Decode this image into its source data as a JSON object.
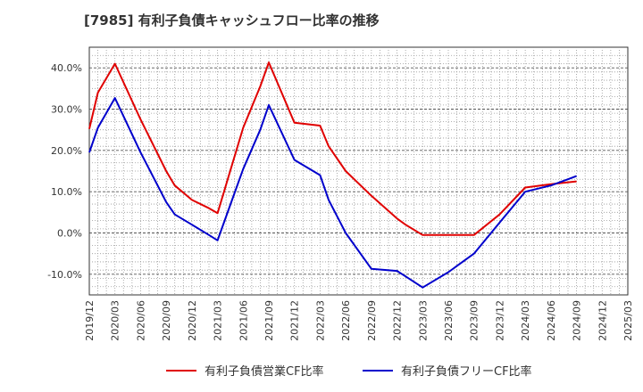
{
  "chart_data": {
    "type": "line",
    "title": "[7985]  有利子負債キャッシュフロー比率の推移",
    "xlabel": "",
    "ylabel": "",
    "ylim": [
      -15,
      45
    ],
    "xlim": [
      "2019/12",
      "2025/03"
    ],
    "x_ticks": [
      "2019/12",
      "2020/03",
      "2020/06",
      "2020/09",
      "2020/12",
      "2021/03",
      "2021/06",
      "2021/09",
      "2021/12",
      "2022/03",
      "2022/06",
      "2022/09",
      "2022/12",
      "2023/03",
      "2023/06",
      "2023/09",
      "2023/12",
      "2024/03",
      "2024/06",
      "2024/09",
      "2024/12",
      "2025/03"
    ],
    "y_ticks": [
      -10,
      0,
      10,
      20,
      30,
      40
    ],
    "y_tick_labels": [
      "-10.0%",
      "0.0%",
      "10.0%",
      "20.0%",
      "30.0%",
      "40.0%"
    ],
    "grid": true,
    "legend_position": "bottom",
    "x": [
      "2019/12",
      "2020/01",
      "2020/03",
      "2020/06",
      "2020/09",
      "2020/10",
      "2020/12",
      "2021/02",
      "2021/03",
      "2021/06",
      "2021/08",
      "2021/09",
      "2021/12",
      "2022/03",
      "2022/04",
      "2022/06",
      "2022/09",
      "2022/12",
      "2023/01",
      "2023/03",
      "2023/06",
      "2023/09",
      "2023/12",
      "2024/03",
      "2024/06",
      "2024/09"
    ],
    "series": [
      {
        "name": "有利子負債営業CF比率",
        "color": "#e00000",
        "values": [
          25.2,
          34.0,
          41.0,
          27.5,
          15.0,
          11.5,
          8.0,
          6.0,
          4.8,
          25.5,
          35.5,
          41.3,
          26.7,
          26.0,
          21.0,
          15.0,
          9.0,
          3.5,
          2.0,
          -0.5,
          -0.5,
          -0.5,
          4.5,
          11.0,
          11.8,
          12.5
        ]
      },
      {
        "name": "有利子負債フリーCF比率",
        "color": "#0000cc",
        "values": [
          19.5,
          25.5,
          32.7,
          19.5,
          7.5,
          4.5,
          2.0,
          -0.5,
          -1.8,
          15.5,
          25.0,
          31.0,
          17.7,
          14.0,
          8.0,
          0.0,
          -8.7,
          -9.2,
          -10.5,
          -13.2,
          -9.5,
          -5.0,
          2.5,
          10.0,
          11.5,
          13.8
        ]
      }
    ]
  }
}
